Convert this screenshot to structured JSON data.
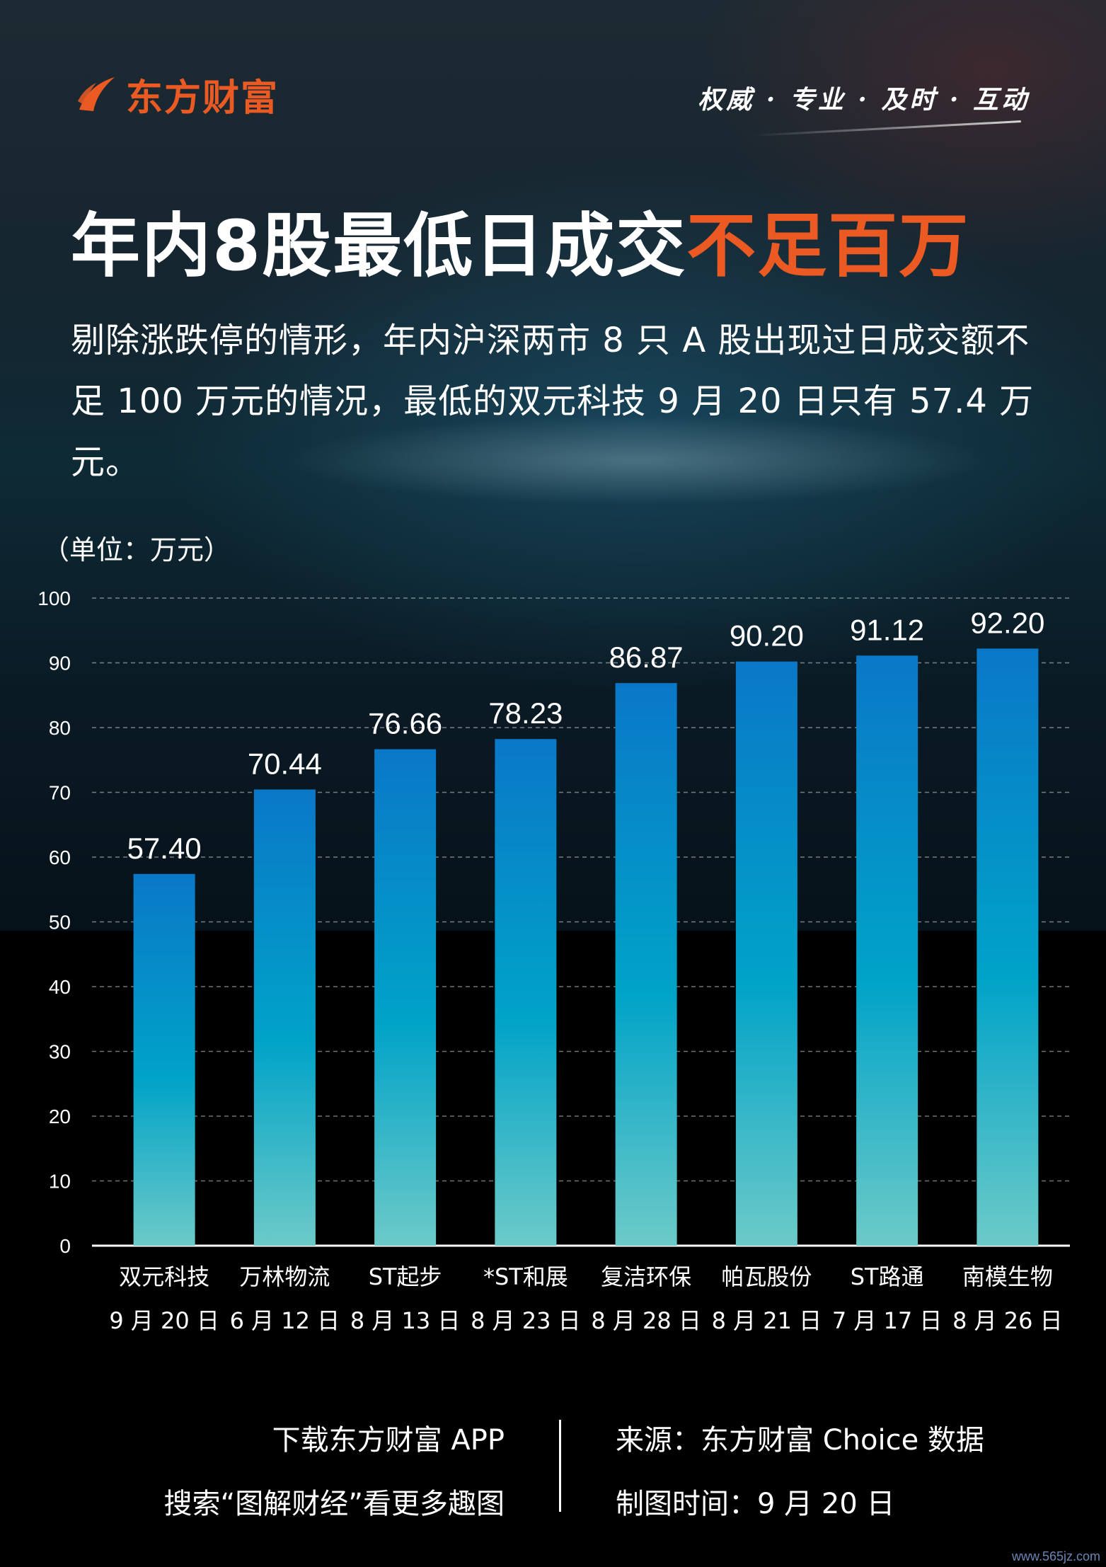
{
  "header": {
    "logo_text": "东方财富",
    "slogan": "权威 · 专业 · 及时 · 互动"
  },
  "title": {
    "main": "年内8股最低日成交",
    "highlight": "不足百万"
  },
  "description": "剔除涨跌停的情形，年内沪深两市 8 只 A 股出现过日成交额不足 100 万元的情况，最低的双元科技 9 月 20 日只有 57.4 万元。",
  "unit_label": "（单位：万元）",
  "footer": {
    "download": "下载东方财富 APP",
    "search": "搜索“图解财经”看更多趣图",
    "source": "来源：东方财富 Choice 数据",
    "date": "制图时间：9 月 20 日"
  },
  "watermark": "www.565jz.com",
  "colors": {
    "accent": "#ec5a24",
    "bar_top": "#0a78c8",
    "bar_mid": "#00a3c8",
    "bar_bottom": "#6ccac8"
  },
  "chart_data": {
    "type": "bar",
    "categories": [
      "双元科技",
      "万林物流",
      "ST起步",
      "*ST和展",
      "复洁环保",
      "帕瓦股份",
      "ST路通",
      "南模生物"
    ],
    "dates": [
      "9 月 20 日",
      "6 月 12 日",
      "8 月 13 日",
      "8 月 23 日",
      "8 月 28 日",
      "8 月 21 日",
      "7 月 17 日",
      "8 月 26 日"
    ],
    "values": [
      57.4,
      70.44,
      76.66,
      78.23,
      86.87,
      90.2,
      91.12,
      92.2
    ],
    "value_labels": [
      "57.40",
      "70.44",
      "76.66",
      "78.23",
      "86.87",
      "90.20",
      "91.12",
      "92.20"
    ],
    "ylim": [
      0,
      100
    ],
    "yticks": [
      0,
      10,
      20,
      30,
      40,
      50,
      60,
      70,
      80,
      90,
      100
    ],
    "grid": true,
    "title": "",
    "xlabel": "",
    "ylabel": "（单位：万元）"
  }
}
